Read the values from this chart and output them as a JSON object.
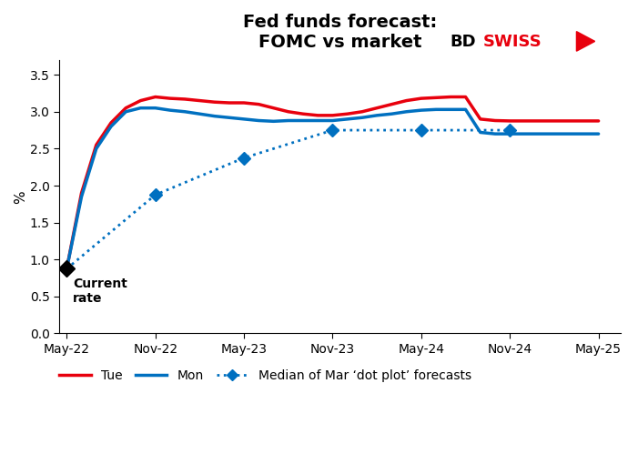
{
  "title_line1": "Fed funds forecast:",
  "title_line2": "FOMC vs market",
  "ylabel": "%",
  "ylim": [
    0.0,
    3.7
  ],
  "yticks": [
    0.0,
    0.5,
    1.0,
    1.5,
    2.0,
    2.5,
    3.0,
    3.5
  ],
  "xtick_positions": [
    0,
    6,
    12,
    18,
    24,
    30,
    36
  ],
  "xtick_labels": [
    "May-22",
    "Nov-22",
    "May-23",
    "Nov-23",
    "May-24",
    "Nov-24",
    "May-25"
  ],
  "background_color": "#ffffff",
  "tue_x": [
    0,
    1,
    2,
    3,
    4,
    5,
    6,
    7,
    8,
    9,
    10,
    11,
    12,
    13,
    14,
    15,
    16,
    17,
    18,
    19,
    20,
    21,
    22,
    23,
    24,
    25,
    26,
    27,
    28,
    29,
    30,
    31,
    32,
    33,
    34,
    35,
    36
  ],
  "tue_y": [
    0.875,
    1.9,
    2.55,
    2.85,
    3.05,
    3.15,
    3.2,
    3.18,
    3.17,
    3.15,
    3.13,
    3.12,
    3.12,
    3.1,
    3.05,
    3.0,
    2.97,
    2.95,
    2.95,
    2.97,
    3.0,
    3.05,
    3.1,
    3.15,
    3.18,
    3.19,
    3.2,
    3.2,
    2.9,
    2.88,
    2.875,
    2.875,
    2.875,
    2.875,
    2.875,
    2.875,
    2.875
  ],
  "tue_color": "#e8000d",
  "tue_linewidth": 2.5,
  "mon_x": [
    0,
    1,
    2,
    3,
    4,
    5,
    6,
    7,
    8,
    9,
    10,
    11,
    12,
    13,
    14,
    15,
    16,
    17,
    18,
    19,
    20,
    21,
    22,
    23,
    24,
    25,
    26,
    27,
    28,
    29,
    30,
    31,
    32,
    33,
    34,
    35,
    36
  ],
  "mon_y": [
    0.875,
    1.85,
    2.5,
    2.8,
    3.0,
    3.05,
    3.05,
    3.02,
    3.0,
    2.97,
    2.94,
    2.92,
    2.9,
    2.88,
    2.87,
    2.88,
    2.88,
    2.88,
    2.88,
    2.9,
    2.92,
    2.95,
    2.97,
    3.0,
    3.02,
    3.03,
    3.03,
    3.03,
    2.72,
    2.7,
    2.7,
    2.7,
    2.7,
    2.7,
    2.7,
    2.7,
    2.7
  ],
  "mon_color": "#0070c0",
  "mon_linewidth": 2.5,
  "dot_x": [
    0,
    6,
    12,
    18,
    24,
    30
  ],
  "dot_y": [
    0.875,
    1.875,
    2.375,
    2.75,
    2.75,
    2.75
  ],
  "dot_color": "#0070c0",
  "dot_linewidth": 2.0,
  "current_rate_label": "Current\nrate",
  "current_rate_x": 0,
  "current_rate_y": 0.875,
  "legend_tue_label": "Tue",
  "legend_mon_label": "Mon",
  "legend_dot_label": "Median of Mar ‘dot plot’ forecasts",
  "x_min": -0.5,
  "x_max": 37.5
}
